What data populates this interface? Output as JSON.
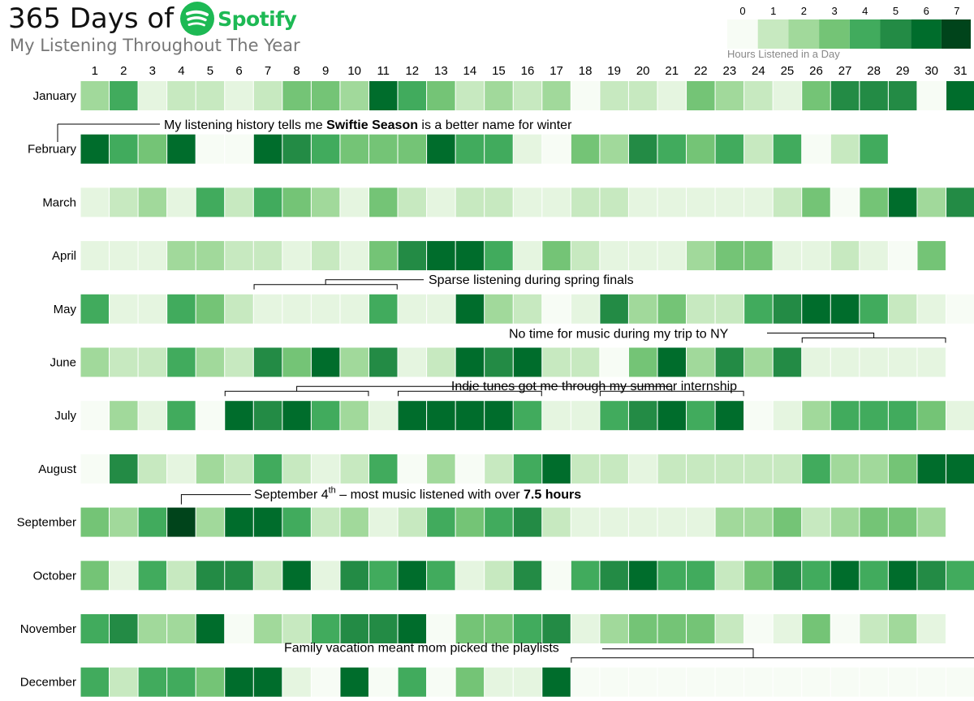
{
  "title": "365 Days of",
  "logo_text": "Spotify",
  "subtitle": "My Listening Throughout The Year",
  "legend": {
    "title": "Hours Listened in a Day",
    "ticks": [
      "0",
      "1",
      "2",
      "3",
      "4",
      "5",
      "6",
      "7"
    ]
  },
  "colors": {
    "scale": [
      "#f7fcf5",
      "#e5f5e0",
      "#c7e9c0",
      "#a1d99b",
      "#74c476",
      "#41ab5d",
      "#238b45",
      "#006d2c",
      "#00441b"
    ],
    "brand": "#1DB954"
  },
  "annotations": [
    {
      "id": "swiftie",
      "pre": "My listening history tells me ",
      "bold": "Swiftie Season",
      "post": " is a better name for winter"
    },
    {
      "id": "spring",
      "text": "Sparse listening during spring finals"
    },
    {
      "id": "ny",
      "text": "No time for music during my trip to NY"
    },
    {
      "id": "indie",
      "text": "Indie tunes got me through my summer internship"
    },
    {
      "id": "september",
      "pre": "September 4",
      "sup": "th",
      "mid": " – most music listened with over ",
      "bold": "7.5 hours"
    },
    {
      "id": "vacation",
      "text": "Family vacation meant mom picked the playlists"
    }
  ],
  "chart_data": {
    "type": "heatmap",
    "title": "365 Days of Spotify",
    "subtitle": "My Listening Throughout The Year",
    "colorbar_label": "Hours Listened in a Day",
    "value_range": [
      0,
      7.5
    ],
    "x": [
      "1",
      "2",
      "3",
      "4",
      "5",
      "6",
      "7",
      "8",
      "9",
      "10",
      "11",
      "12",
      "13",
      "14",
      "15",
      "16",
      "17",
      "18",
      "19",
      "20",
      "21",
      "22",
      "23",
      "24",
      "25",
      "26",
      "27",
      "28",
      "29",
      "30",
      "31"
    ],
    "y": [
      "January",
      "February",
      "March",
      "April",
      "May",
      "June",
      "July",
      "August",
      "September",
      "October",
      "November",
      "December"
    ],
    "values": [
      [
        3,
        5,
        1,
        1.5,
        2,
        0.5,
        2,
        4,
        4,
        3,
        7,
        5,
        4,
        1.5,
        3,
        2,
        3,
        0,
        2,
        2,
        1,
        4,
        3,
        2,
        1,
        4,
        5.5,
        6,
        6,
        0.2,
        7
      ],
      [
        7,
        5,
        4,
        7,
        0.2,
        0.2,
        7,
        5.5,
        5,
        3.5,
        3.5,
        3.5,
        6.5,
        5,
        5,
        1,
        0.2,
        3.5,
        3,
        5.5,
        5,
        3.5,
        5,
        2,
        5,
        0.2,
        2,
        5
      ],
      [
        0.5,
        2,
        2.5,
        0.5,
        4.5,
        1.5,
        5,
        3.5,
        2.5,
        0.5,
        4,
        2,
        0.5,
        2,
        1.5,
        1,
        0.5,
        2,
        2,
        0.5,
        0.5,
        0.5,
        1,
        0.5,
        2,
        3.5,
        0.2,
        4,
        7,
        2.5,
        6
      ],
      [
        1,
        1.2,
        1,
        3,
        2.5,
        1.5,
        2,
        0.5,
        2,
        1,
        4,
        6,
        6.5,
        7,
        5,
        1,
        3.5,
        2,
        0.5,
        0.5,
        0.5,
        2.5,
        3.5,
        3.5,
        0.5,
        0.5,
        1.5,
        1,
        0.2,
        3.5
      ],
      [
        4.5,
        1,
        0.5,
        4.5,
        4,
        1.5,
        1,
        0.5,
        0.5,
        0.5,
        4.5,
        0.5,
        0.5,
        7,
        2.5,
        1.5,
        0.2,
        1,
        5.5,
        3,
        3.5,
        1.5,
        2,
        5,
        5.5,
        7,
        6.5,
        4.5,
        1.5,
        0.5,
        0.3
      ],
      [
        3,
        1.5,
        1.5,
        5,
        3,
        2,
        5.5,
        4,
        7,
        3,
        5.5,
        1,
        2,
        6.5,
        6,
        6.5,
        1.5,
        2,
        0.2,
        4,
        7,
        3,
        5.5,
        3,
        6,
        1,
        0.5,
        0.5,
        0.5,
        0.5
      ],
      [
        0.3,
        3,
        0.5,
        5,
        0.3,
        6.5,
        6,
        6.5,
        5,
        3,
        0.5,
        7,
        6.5,
        6.5,
        6.5,
        4.5,
        1,
        1,
        4.5,
        5.5,
        7,
        5,
        6.5,
        0.2,
        1,
        2.5,
        4.5,
        5,
        4.5,
        4,
        1
      ],
      [
        0.2,
        5.5,
        2,
        1,
        3,
        2,
        4.5,
        1.5,
        1,
        1.5,
        4.5,
        0.3,
        2.5,
        0.3,
        1.5,
        4.5,
        7,
        2,
        2,
        1,
        1.5,
        2,
        2,
        2,
        1.5,
        4.5,
        3,
        2.5,
        4,
        6.5,
        7
      ],
      [
        3.5,
        2.5,
        5,
        7.5,
        2.5,
        6.5,
        7,
        5,
        2,
        2.5,
        0.5,
        1.5,
        5,
        4,
        4.5,
        5.5,
        2,
        1,
        0.5,
        1,
        0.5,
        0.5,
        3,
        2.5,
        3.5,
        2,
        3,
        3.5,
        3.5,
        2.5
      ],
      [
        4,
        1,
        5,
        1.5,
        6,
        6,
        2,
        6.5,
        1,
        5.5,
        4.5,
        6.5,
        4.5,
        1,
        2,
        5.5,
        0.2,
        4.5,
        6,
        6.5,
        5,
        5,
        2,
        4,
        6,
        4.5,
        7,
        5,
        7,
        5.5,
        4.5
      ],
      [
        5,
        5.5,
        2.5,
        2.5,
        6.5,
        0.2,
        2.5,
        2,
        4.5,
        5.5,
        6,
        7,
        0.2,
        3.5,
        4,
        5,
        5.5,
        0.5,
        3,
        4,
        3.5,
        4,
        2,
        0.2,
        1,
        4,
        0.2,
        2,
        3,
        1,
        null
      ],
      [
        5,
        2,
        4.5,
        4.5,
        3.5,
        7,
        7,
        1,
        0.2,
        7,
        0.2,
        4.5,
        0.2,
        3.5,
        1,
        1,
        7,
        0,
        0,
        0,
        0,
        0,
        0,
        0,
        0,
        0,
        0,
        0,
        0,
        0,
        0
      ]
    ]
  }
}
